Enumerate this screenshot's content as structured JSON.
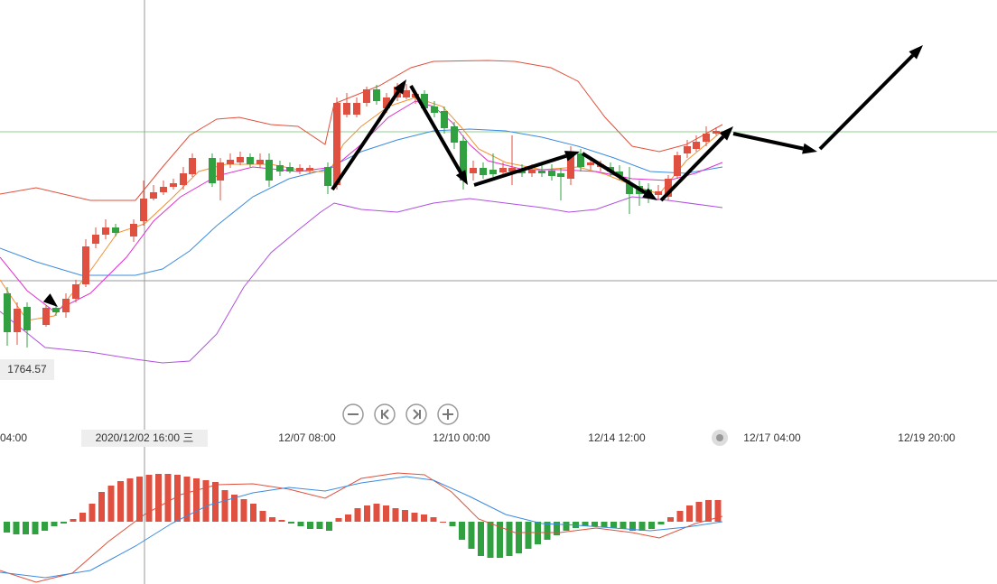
{
  "price_label": "1764.57",
  "time_labels": [
    "04:00",
    "2020/12/02 16:00 三",
    "12/07 08:00",
    "12/10 00:00",
    "12/14 12:00",
    "12/17 04:00",
    "12/19 20:00"
  ]
}
